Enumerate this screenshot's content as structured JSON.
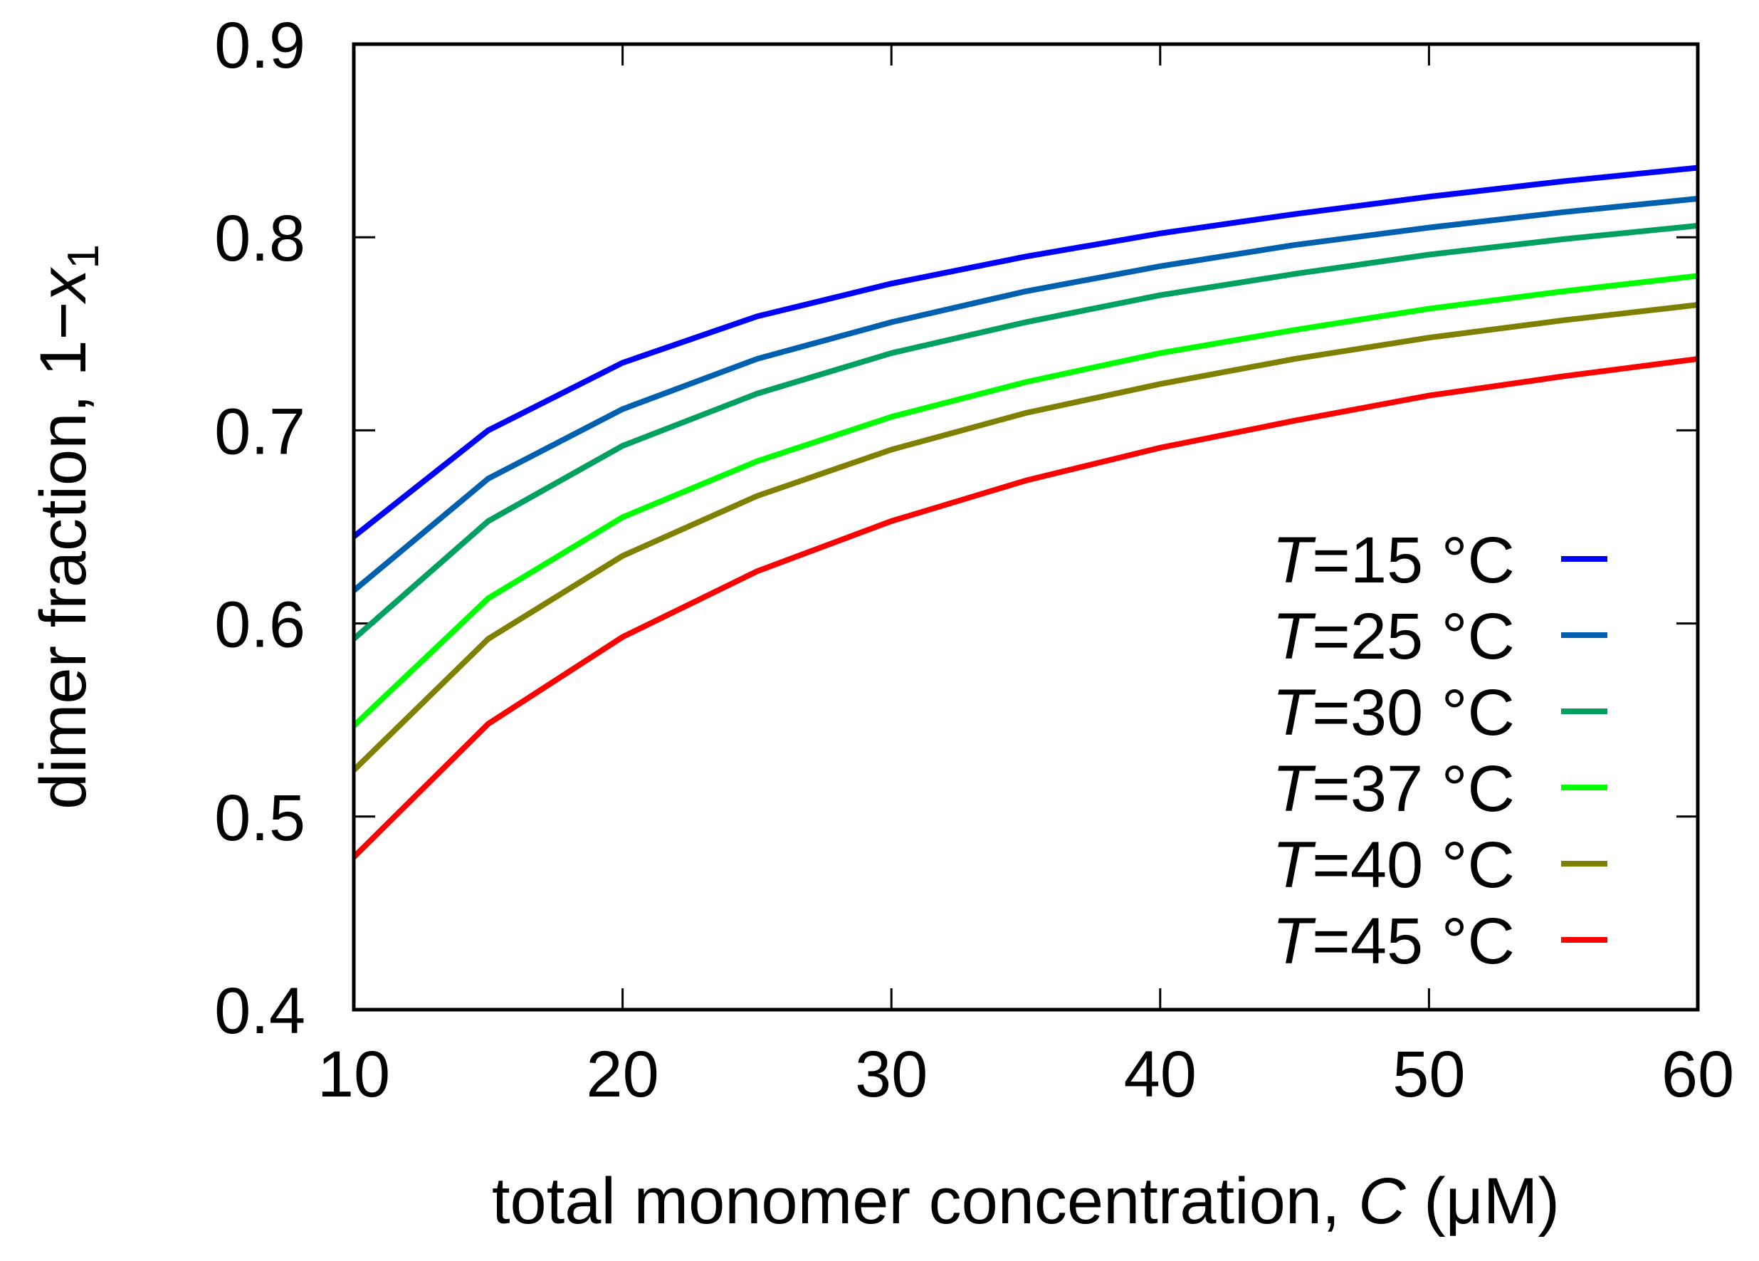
{
  "chart_data": {
    "type": "line",
    "xlabel": {
      "text": "total monomer concentration, ",
      "var": "C",
      "unit": " (μM)"
    },
    "ylabel": {
      "text": "dimer fraction, 1−",
      "var": "x",
      "sub": "1"
    },
    "xlim": [
      10,
      60
    ],
    "ylim": [
      0.4,
      0.9
    ],
    "xticks": [
      10,
      20,
      30,
      40,
      50,
      60
    ],
    "xtick_labels": [
      "10",
      "20",
      "30",
      "40",
      "50",
      "60"
    ],
    "yticks": [
      0.4,
      0.5,
      0.6,
      0.7,
      0.8,
      0.9
    ],
    "ytick_labels": [
      "0.4",
      "0.5",
      "0.6",
      "0.7",
      "0.8",
      "0.9"
    ],
    "grid": false,
    "legend_position": "center-right",
    "x": [
      10,
      15,
      20,
      25,
      30,
      35,
      40,
      45,
      50,
      55,
      60
    ],
    "series": [
      {
        "name": "T=15 °C",
        "prefix": "T",
        "suffix": "=15 °C",
        "color": "#0000ff",
        "values": [
          0.645,
          0.7,
          0.735,
          0.759,
          0.776,
          0.79,
          0.802,
          0.812,
          0.821,
          0.829,
          0.836
        ]
      },
      {
        "name": "T=25 °C",
        "prefix": "T",
        "suffix": "=25 °C",
        "color": "#0060b0",
        "values": [
          0.617,
          0.675,
          0.711,
          0.737,
          0.756,
          0.772,
          0.785,
          0.796,
          0.805,
          0.813,
          0.82
        ]
      },
      {
        "name": "T=30 °C",
        "prefix": "T",
        "suffix": "=30 °C",
        "color": "#00a060",
        "values": [
          0.592,
          0.653,
          0.692,
          0.719,
          0.74,
          0.756,
          0.77,
          0.781,
          0.791,
          0.799,
          0.806
        ]
      },
      {
        "name": "T=37 °C",
        "prefix": "T",
        "suffix": "=37 °C",
        "color": "#00ff00",
        "values": [
          0.547,
          0.613,
          0.655,
          0.684,
          0.707,
          0.725,
          0.74,
          0.752,
          0.763,
          0.772,
          0.78
        ]
      },
      {
        "name": "T=40 °C",
        "prefix": "T",
        "suffix": "=40 °C",
        "color": "#808000",
        "values": [
          0.524,
          0.592,
          0.635,
          0.666,
          0.69,
          0.709,
          0.724,
          0.737,
          0.748,
          0.757,
          0.765
        ]
      },
      {
        "name": "T=45 °C",
        "prefix": "T",
        "suffix": "=45 °C",
        "color": "#ff0000",
        "values": [
          0.479,
          0.548,
          0.593,
          0.627,
          0.653,
          0.674,
          0.691,
          0.705,
          0.718,
          0.728,
          0.737
        ]
      }
    ]
  }
}
